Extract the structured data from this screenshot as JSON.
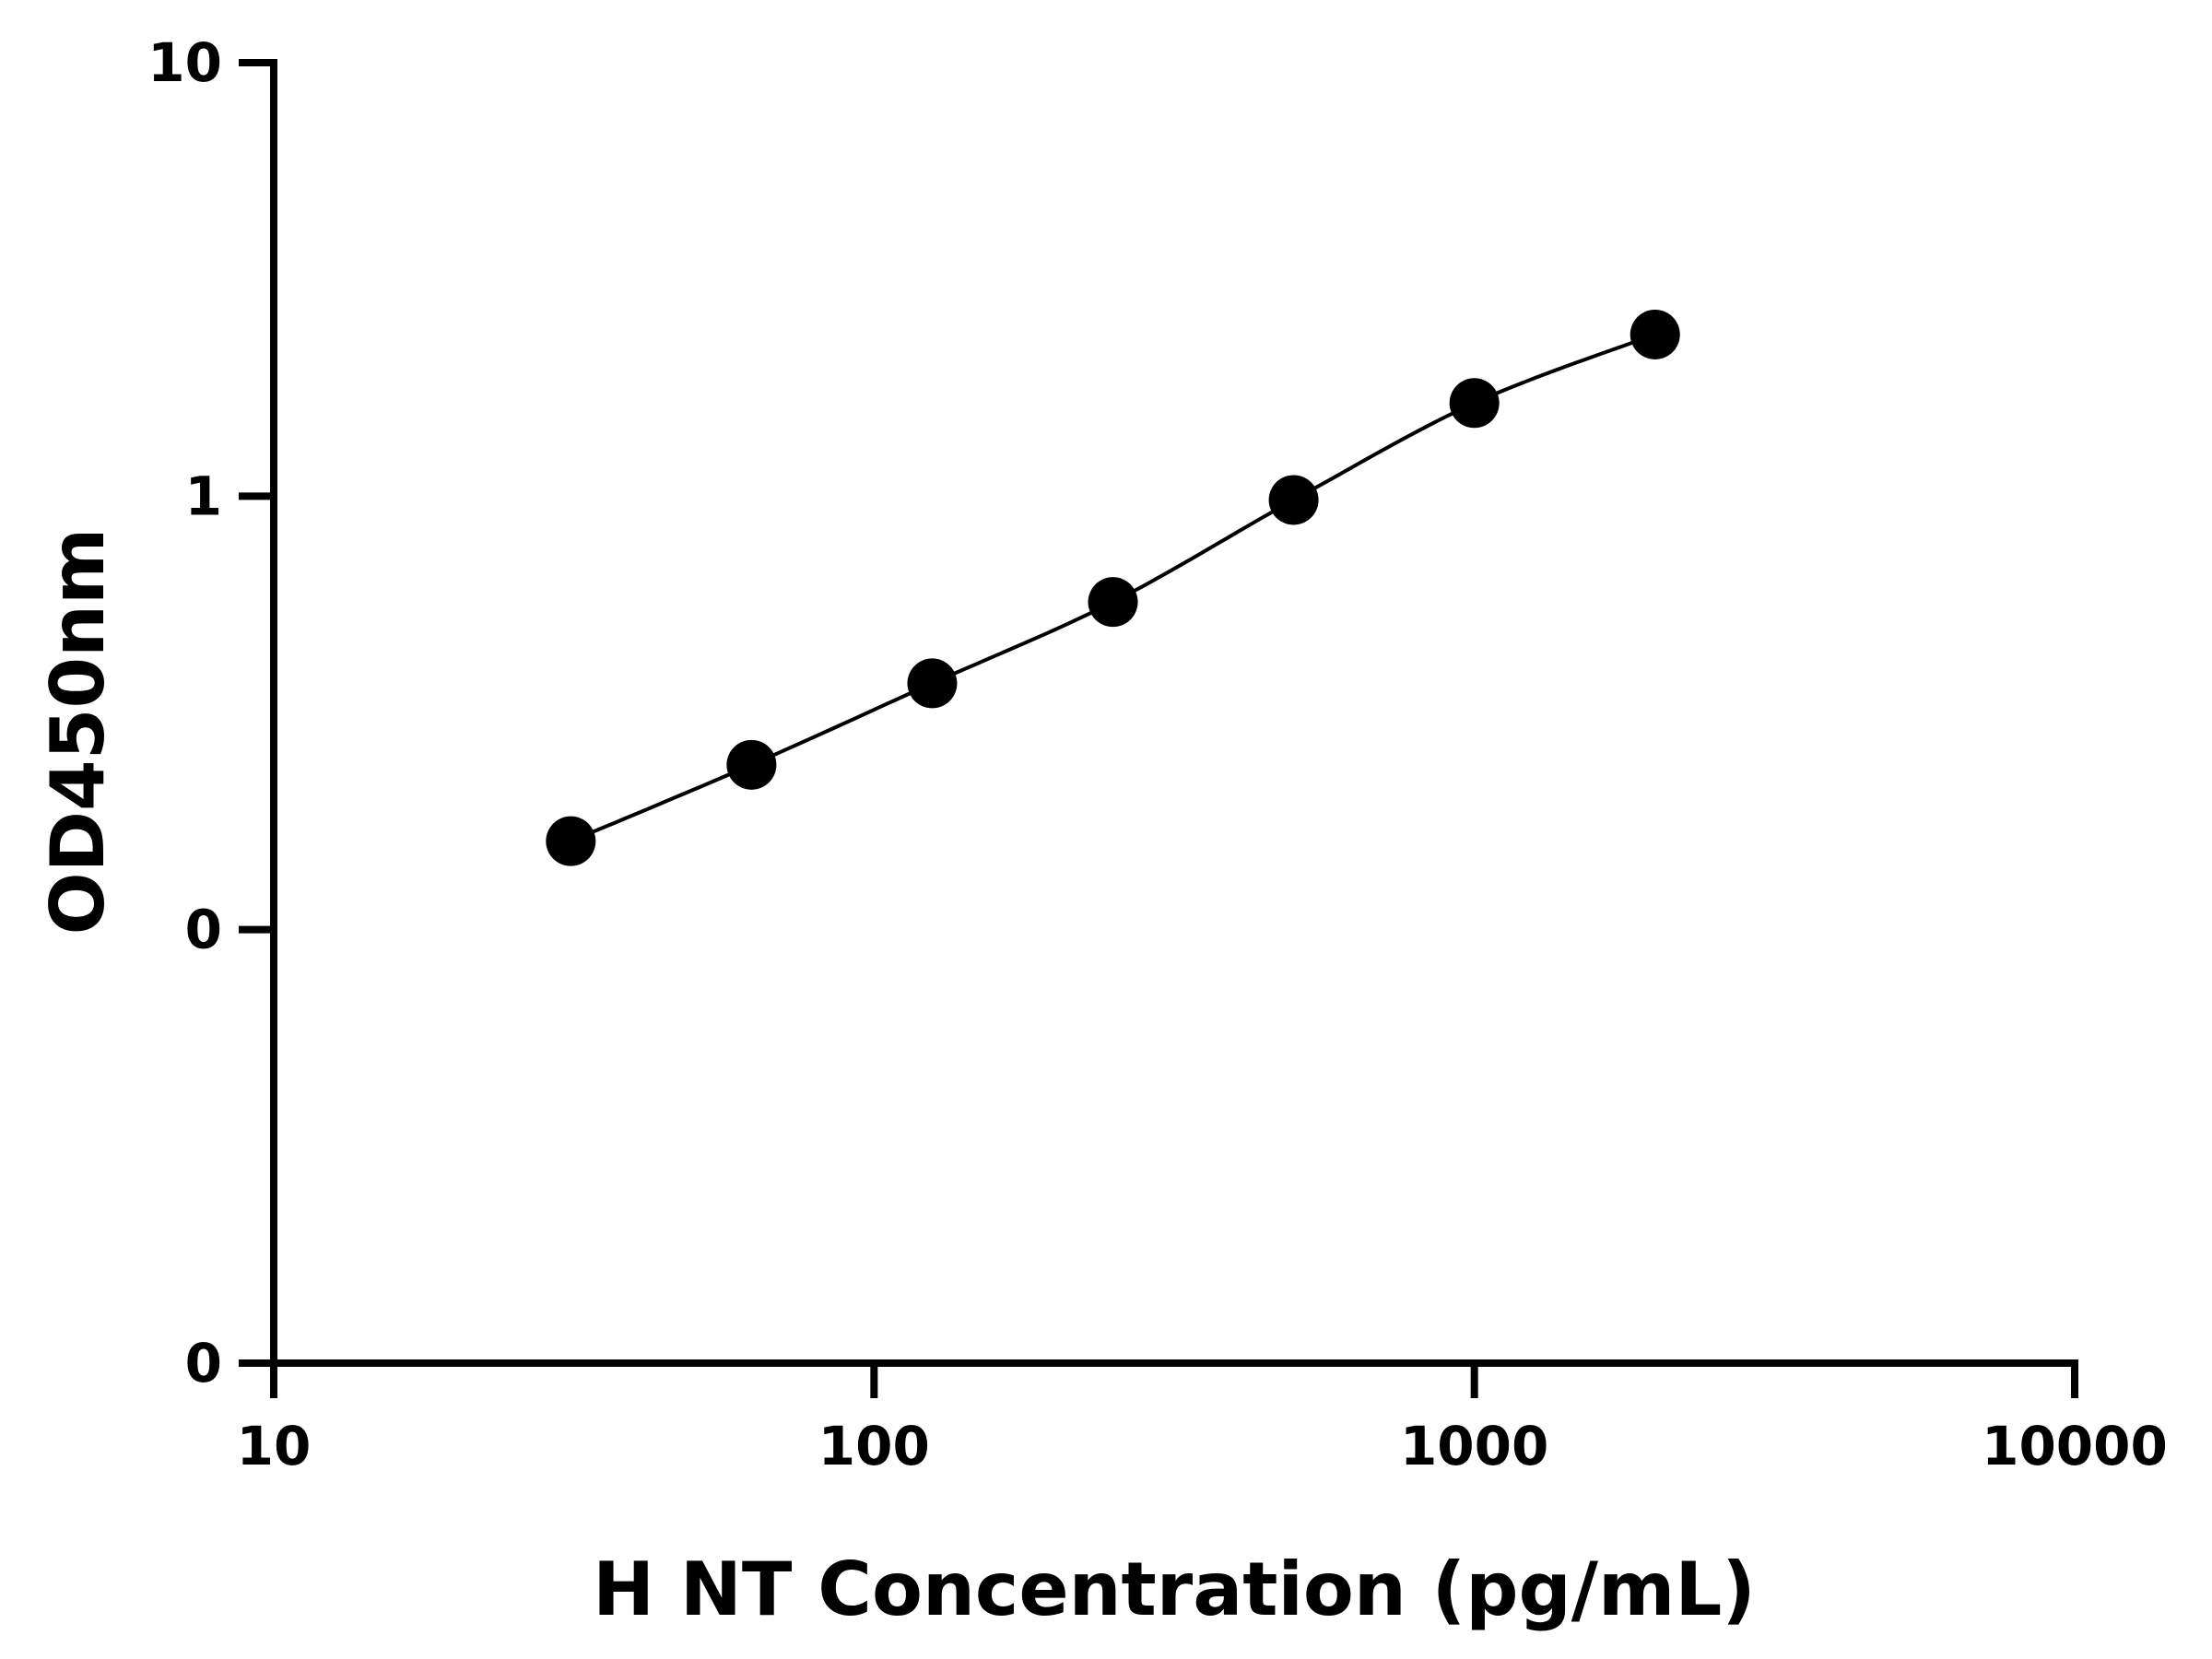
{
  "chart_data": {
    "type": "scatter",
    "xlabel": "H NT Concentration (pg/mL)",
    "ylabel": "OD450nm",
    "x_scale": "log",
    "y_scale": "log",
    "xlim": [
      10,
      10000
    ],
    "ylim": [
      0.01,
      10
    ],
    "x_ticks": [
      {
        "value": 10,
        "label": "10"
      },
      {
        "value": 100,
        "label": "100"
      },
      {
        "value": 1000,
        "label": "1000"
      },
      {
        "value": 10000,
        "label": "10000"
      }
    ],
    "y_ticks": [
      {
        "value": 0.01,
        "label": "0"
      },
      {
        "value": 0.1,
        "label": "0"
      },
      {
        "value": 1,
        "label": "1"
      },
      {
        "value": 10,
        "label": "10"
      }
    ],
    "series": [
      {
        "x": [
          31.25,
          62.5,
          125,
          250,
          500,
          1000,
          2000
        ],
        "y": [
          0.16,
          0.24,
          0.37,
          0.57,
          0.98,
          1.64,
          2.36
        ]
      }
    ],
    "fit_curve": true,
    "grid": false,
    "legend": "none",
    "colors": {
      "marker": "#000000",
      "line": "#000000",
      "axis": "#000000"
    }
  }
}
